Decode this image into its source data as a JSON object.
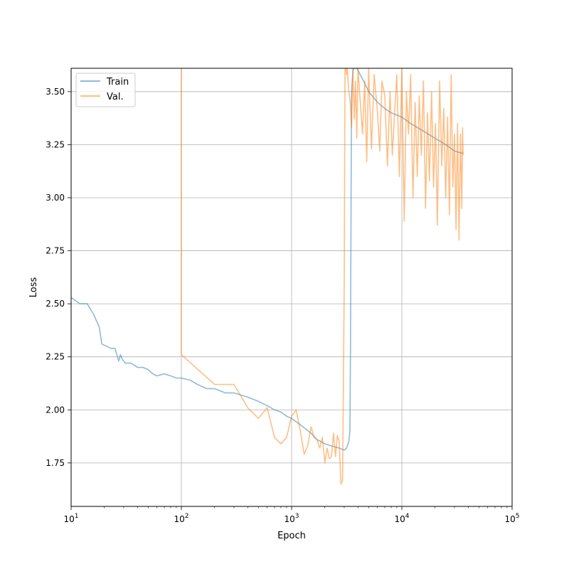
{
  "chart_data": {
    "type": "line",
    "title": "",
    "xlabel": "Epoch",
    "ylabel": "Loss",
    "xscale": "log",
    "xlim": [
      10,
      100000
    ],
    "ylim": [
      1.545,
      3.61
    ],
    "grid": true,
    "legend_position": "top-left",
    "xticks": [
      {
        "value": 10,
        "base": "10",
        "exp": "1"
      },
      {
        "value": 100,
        "base": "10",
        "exp": "2"
      },
      {
        "value": 1000,
        "base": "10",
        "exp": "3"
      },
      {
        "value": 10000,
        "base": "10",
        "exp": "4"
      },
      {
        "value": 100000,
        "base": "10",
        "exp": "5"
      }
    ],
    "yticks": [
      {
        "value": 1.75,
        "label": "1.75"
      },
      {
        "value": 2.0,
        "label": "2.00"
      },
      {
        "value": 2.25,
        "label": "2.25"
      },
      {
        "value": 2.5,
        "label": "2.50"
      },
      {
        "value": 2.75,
        "label": "2.75"
      },
      {
        "value": 3.0,
        "label": "3.00"
      },
      {
        "value": 3.25,
        "label": "3.25"
      },
      {
        "value": 3.5,
        "label": "3.50"
      }
    ],
    "series": [
      {
        "name": "Train",
        "color": "#1f77b4",
        "x": [
          10,
          12,
          14,
          16,
          18,
          19,
          21,
          23,
          25,
          27,
          28,
          29,
          31,
          35,
          40,
          45,
          50,
          55,
          60,
          70,
          80,
          90,
          100,
          120,
          140,
          170,
          200,
          250,
          300,
          400,
          500,
          600,
          700,
          800,
          900,
          1000,
          1200,
          1500,
          1700,
          2000,
          2300,
          2700,
          3000,
          3150,
          3300,
          3380,
          3420,
          3460,
          3500,
          3600,
          3800,
          4000,
          4500,
          5000,
          6000,
          7000,
          8000,
          10000,
          12000,
          15000,
          20000,
          25000,
          30000,
          35000,
          36000
        ],
        "y": [
          2.53,
          2.5,
          2.5,
          2.45,
          2.39,
          2.31,
          2.3,
          2.29,
          2.29,
          2.23,
          2.26,
          2.24,
          2.22,
          2.22,
          2.2,
          2.2,
          2.19,
          2.17,
          2.16,
          2.17,
          2.16,
          2.15,
          2.15,
          2.14,
          2.12,
          2.1,
          2.1,
          2.08,
          2.08,
          2.06,
          2.04,
          2.02,
          2.0,
          1.99,
          1.97,
          1.96,
          1.93,
          1.89,
          1.86,
          1.84,
          1.83,
          1.82,
          1.81,
          1.82,
          1.85,
          1.9,
          2.3,
          3.0,
          3.5,
          3.6,
          3.62,
          3.6,
          3.55,
          3.5,
          3.45,
          3.42,
          3.4,
          3.38,
          3.35,
          3.32,
          3.28,
          3.25,
          3.22,
          3.21,
          3.21
        ]
      },
      {
        "name": "Val.",
        "color": "#ff7f0e",
        "x": [
          100,
          100,
          100,
          200,
          300,
          400,
          500,
          600,
          700,
          800,
          900,
          1000,
          1100,
          1200,
          1300,
          1400,
          1500,
          1600,
          1700,
          1800,
          1900,
          2000,
          2100,
          2200,
          2300,
          2400,
          2500,
          2600,
          2700,
          2800,
          2900,
          3000,
          3050,
          3100,
          3150,
          3200,
          3300,
          3400,
          3500,
          3600,
          3700,
          3800,
          3900,
          4000,
          4200,
          4400,
          4600,
          4800,
          5000,
          5300,
          5600,
          6000,
          6300,
          6600,
          7000,
          7400,
          7800,
          8200,
          8600,
          9000,
          9500,
          10000,
          10500,
          11000,
          11500,
          12000,
          12600,
          13200,
          13800,
          14400,
          15000,
          15700,
          16400,
          17100,
          17800,
          18600,
          19400,
          20200,
          21000,
          22000,
          23000,
          24000,
          25000,
          26000,
          27000,
          28000,
          29000,
          30000,
          31000,
          32000,
          33000,
          34000,
          35000,
          35500,
          36000
        ],
        "y": [
          3.61,
          2.26,
          2.26,
          2.12,
          2.12,
          2.01,
          1.96,
          2.01,
          1.87,
          1.84,
          1.87,
          1.97,
          2.0,
          1.9,
          1.79,
          1.83,
          1.92,
          1.87,
          1.86,
          1.82,
          1.87,
          1.75,
          1.82,
          1.77,
          1.78,
          1.89,
          1.78,
          1.88,
          1.85,
          1.65,
          1.67,
          2.6,
          3.61,
          3.61,
          3.58,
          3.61,
          3.5,
          3.45,
          3.33,
          3.61,
          3.37,
          3.55,
          3.28,
          3.61,
          3.45,
          3.3,
          3.55,
          3.17,
          3.61,
          3.23,
          3.58,
          3.41,
          3.22,
          3.55,
          3.48,
          3.15,
          3.5,
          3.2,
          3.4,
          3.58,
          3.1,
          3.61,
          2.89,
          3.5,
          3.3,
          3.58,
          3.0,
          3.45,
          3.1,
          3.48,
          3.2,
          3.55,
          2.95,
          3.4,
          3.08,
          3.5,
          3.05,
          3.35,
          2.87,
          3.55,
          3.15,
          3.42,
          3.0,
          3.38,
          2.92,
          3.58,
          3.05,
          3.3,
          2.85,
          3.35,
          2.8,
          3.3,
          2.95,
          3.33,
          3.2
        ]
      }
    ]
  }
}
